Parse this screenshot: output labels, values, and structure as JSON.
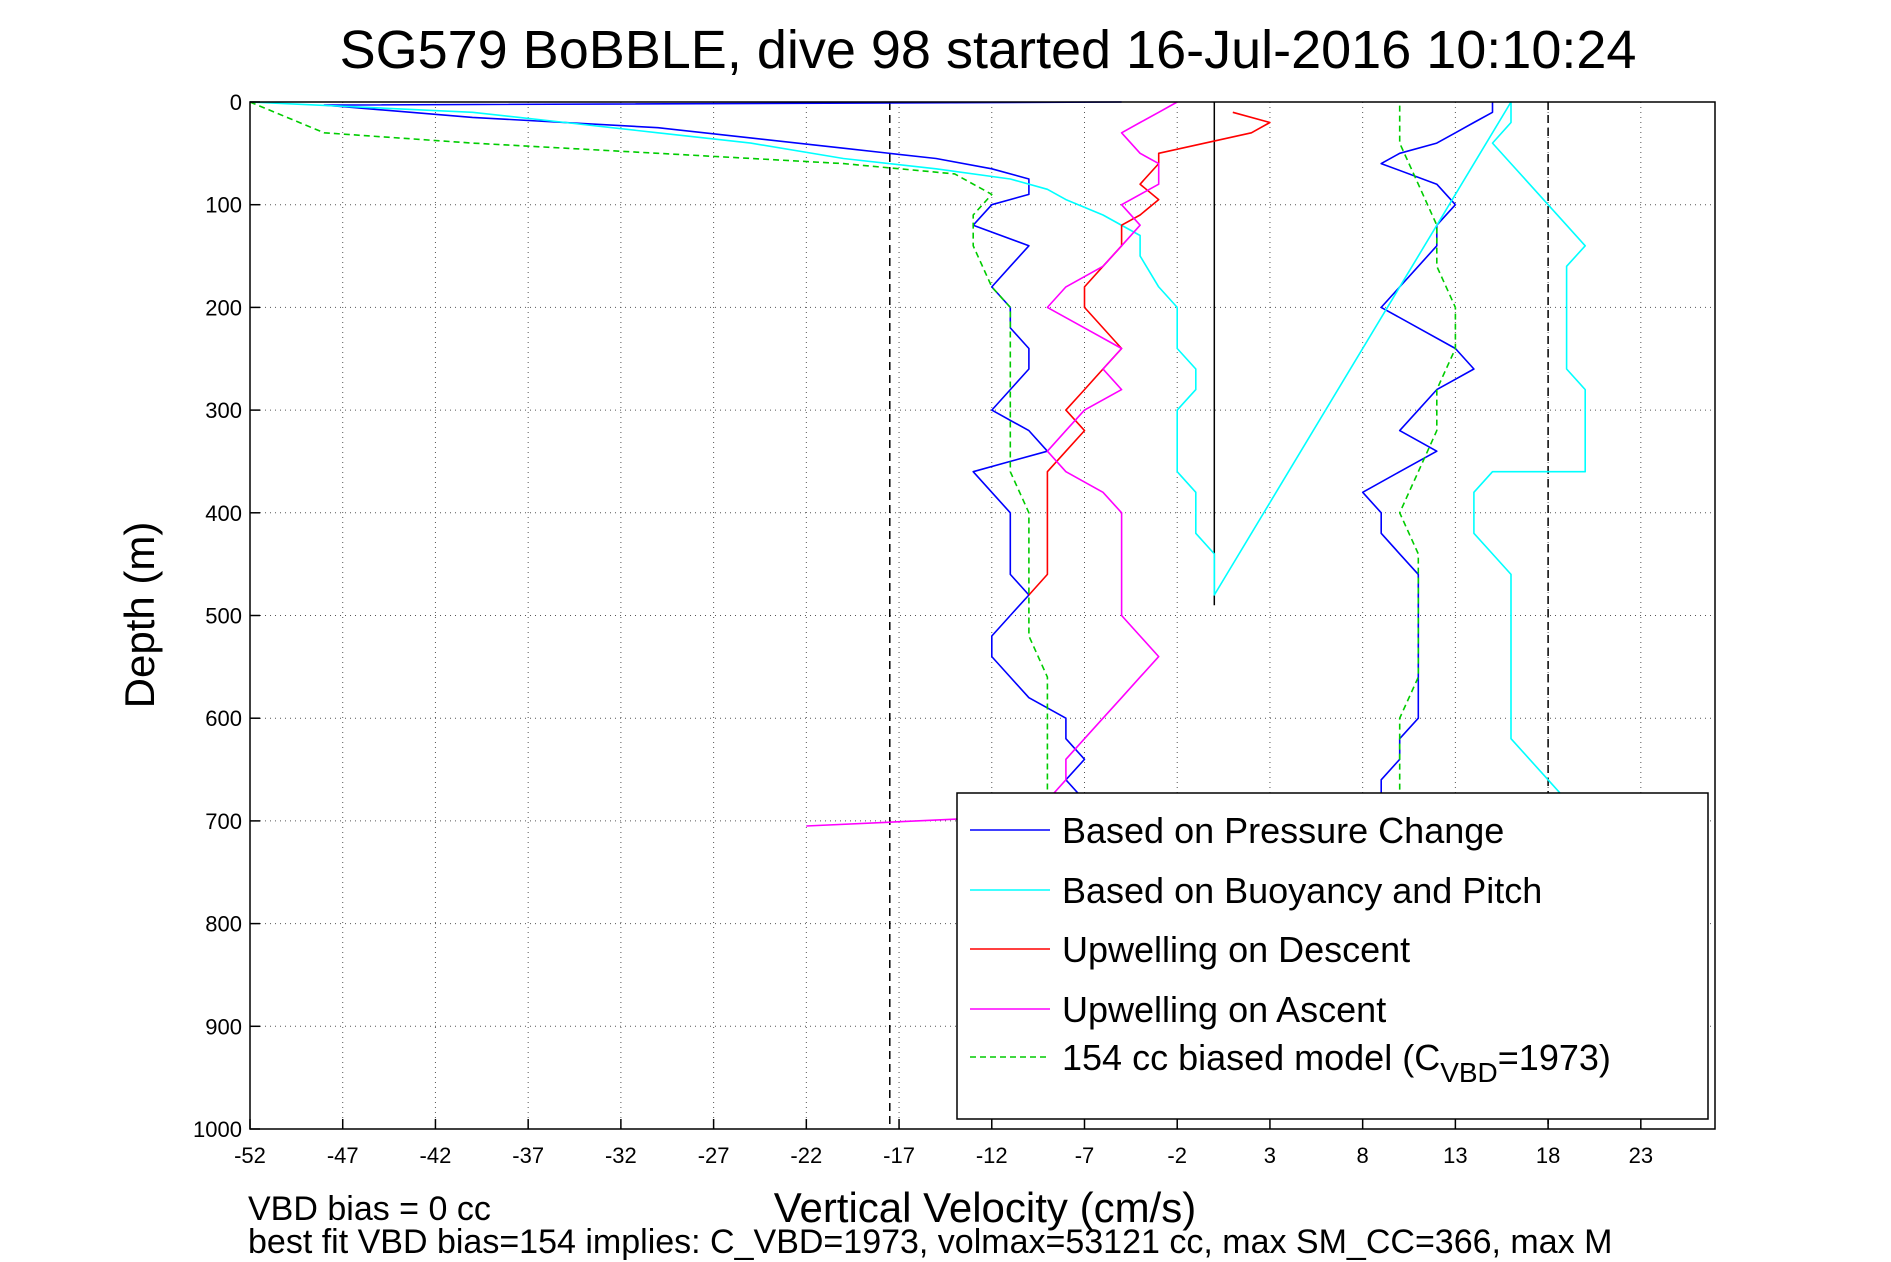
{
  "chart_data": {
    "type": "line",
    "title": "SG579 BoBBLE, dive 98 started 16-Jul-2016 10:10:24",
    "xlabel": "Vertical Velocity (cm/s)",
    "ylabel": "Depth (m)",
    "xlim": [
      -52,
      27
    ],
    "ylim": [
      0,
      1000
    ],
    "y_reversed": true,
    "grid": true,
    "legend_position": "lower-right",
    "xticks": [
      -52,
      -47,
      -42,
      -37,
      -32,
      -27,
      -22,
      -17,
      -12,
      -7,
      -2,
      3,
      8,
      13,
      18,
      23
    ],
    "yticks": [
      0,
      100,
      200,
      300,
      400,
      500,
      600,
      700,
      800,
      900,
      1000
    ],
    "reference_lines": {
      "dashed": [
        -17.5,
        18
      ],
      "solid": [
        0
      ]
    },
    "series": [
      {
        "name": "Based on Pressure Change",
        "color": "#0000ff",
        "points": [
          [
            -5,
            0
          ],
          [
            -48,
            3
          ],
          [
            -40,
            15
          ],
          [
            -30,
            25
          ],
          [
            -25,
            35
          ],
          [
            -20,
            45
          ],
          [
            -15,
            55
          ],
          [
            -12,
            65
          ],
          [
            -10,
            75
          ],
          [
            -10,
            90
          ],
          [
            -12,
            100
          ],
          [
            -13,
            120
          ],
          [
            -10,
            140
          ],
          [
            -11,
            160
          ],
          [
            -12,
            180
          ],
          [
            -11,
            200
          ],
          [
            -11,
            220
          ],
          [
            -10,
            240
          ],
          [
            -10,
            260
          ],
          [
            -11,
            280
          ],
          [
            -12,
            300
          ],
          [
            -10,
            320
          ],
          [
            -9,
            340
          ],
          [
            -11,
            350
          ],
          [
            -13,
            360
          ],
          [
            -12,
            380
          ],
          [
            -11,
            400
          ],
          [
            -11,
            420
          ],
          [
            -11,
            440
          ],
          [
            -11,
            460
          ],
          [
            -10,
            480
          ],
          [
            -11,
            500
          ],
          [
            -12,
            520
          ],
          [
            -12,
            540
          ],
          [
            -11,
            560
          ],
          [
            -10,
            580
          ],
          [
            -8,
            600
          ],
          [
            -8,
            620
          ],
          [
            -7,
            640
          ],
          [
            -8,
            660
          ],
          [
            -7,
            680
          ],
          [
            9,
            680
          ],
          [
            9,
            660
          ],
          [
            10,
            640
          ],
          [
            10,
            620
          ],
          [
            11,
            600
          ],
          [
            11,
            580
          ],
          [
            11,
            560
          ],
          [
            11,
            540
          ],
          [
            11,
            520
          ],
          [
            11,
            500
          ],
          [
            11,
            480
          ],
          [
            11,
            460
          ],
          [
            10,
            440
          ],
          [
            9,
            420
          ],
          [
            9,
            400
          ],
          [
            8,
            380
          ],
          [
            10,
            360
          ],
          [
            12,
            340
          ],
          [
            10,
            320
          ],
          [
            11,
            300
          ],
          [
            12,
            280
          ],
          [
            14,
            260
          ],
          [
            13,
            240
          ],
          [
            11,
            220
          ],
          [
            9,
            200
          ],
          [
            10,
            180
          ],
          [
            11,
            160
          ],
          [
            12,
            140
          ],
          [
            12,
            120
          ],
          [
            13,
            100
          ],
          [
            12,
            80
          ],
          [
            9,
            60
          ],
          [
            10,
            50
          ],
          [
            12,
            40
          ],
          [
            13,
            30
          ],
          [
            14,
            20
          ],
          [
            15,
            10
          ],
          [
            15,
            0
          ]
        ]
      },
      {
        "name": "Based on Buoyancy and Pitch",
        "color": "#00ffff",
        "points": [
          [
            -52,
            0
          ],
          [
            -40,
            10
          ],
          [
            -35,
            20
          ],
          [
            -30,
            30
          ],
          [
            -25,
            40
          ],
          [
            -20,
            55
          ],
          [
            -15,
            65
          ],
          [
            -11,
            75
          ],
          [
            -9,
            85
          ],
          [
            -8,
            95
          ],
          [
            -6,
            110
          ],
          [
            -4,
            130
          ],
          [
            -4,
            150
          ],
          [
            -3,
            180
          ],
          [
            -2,
            200
          ],
          [
            -2,
            220
          ],
          [
            -2,
            240
          ],
          [
            -1,
            260
          ],
          [
            -1,
            280
          ],
          [
            -2,
            300
          ],
          [
            -2,
            330
          ],
          [
            -2,
            360
          ],
          [
            -1,
            380
          ],
          [
            -1,
            400
          ],
          [
            -1,
            420
          ],
          [
            0,
            440
          ],
          [
            0,
            460
          ],
          [
            0,
            480
          ],
          [
            16,
            0
          ],
          [
            16,
            20
          ],
          [
            15,
            40
          ],
          [
            16,
            60
          ],
          [
            17,
            80
          ],
          [
            18,
            100
          ],
          [
            19,
            120
          ],
          [
            20,
            140
          ],
          [
            19,
            160
          ],
          [
            19,
            180
          ],
          [
            19,
            200
          ],
          [
            19,
            220
          ],
          [
            19,
            240
          ],
          [
            19,
            260
          ],
          [
            20,
            280
          ],
          [
            20,
            300
          ],
          [
            20,
            320
          ],
          [
            20,
            340
          ],
          [
            20,
            360
          ],
          [
            15,
            360
          ],
          [
            14,
            380
          ],
          [
            14,
            400
          ],
          [
            14,
            420
          ],
          [
            15,
            440
          ],
          [
            16,
            460
          ],
          [
            16,
            480
          ],
          [
            16,
            500
          ],
          [
            16,
            520
          ],
          [
            16,
            540
          ],
          [
            16,
            560
          ],
          [
            16,
            580
          ],
          [
            16,
            600
          ],
          [
            16,
            620
          ],
          [
            17,
            640
          ],
          [
            18,
            660
          ],
          [
            19,
            680
          ],
          [
            20,
            690
          ]
        ]
      },
      {
        "name": "Upwelling on Descent",
        "color": "#ff0000",
        "points": [
          [
            1,
            10
          ],
          [
            3,
            20
          ],
          [
            2,
            30
          ],
          [
            -3,
            50
          ],
          [
            -3,
            60
          ],
          [
            -4,
            80
          ],
          [
            -3,
            95
          ],
          [
            -4,
            110
          ],
          [
            -5,
            120
          ],
          [
            -5,
            140
          ],
          [
            -6,
            160
          ],
          [
            -7,
            180
          ],
          [
            -7,
            200
          ],
          [
            -6,
            220
          ],
          [
            -5,
            240
          ],
          [
            -6,
            260
          ],
          [
            -7,
            280
          ],
          [
            -8,
            300
          ],
          [
            -7,
            320
          ],
          [
            -8,
            340
          ],
          [
            -9,
            360
          ],
          [
            -9,
            380
          ],
          [
            -9,
            400
          ],
          [
            -9,
            420
          ],
          [
            -9,
            440
          ],
          [
            -9,
            460
          ],
          [
            -10,
            480
          ]
        ]
      },
      {
        "name": "Upwelling on Ascent",
        "color": "#ff00ff",
        "points": [
          [
            -2,
            0
          ],
          [
            -3,
            10
          ],
          [
            -4,
            20
          ],
          [
            -5,
            30
          ],
          [
            -4,
            50
          ],
          [
            -3,
            60
          ],
          [
            -3,
            80
          ],
          [
            -5,
            100
          ],
          [
            -4,
            120
          ],
          [
            -5,
            140
          ],
          [
            -6,
            160
          ],
          [
            -8,
            180
          ],
          [
            -9,
            200
          ],
          [
            -7,
            220
          ],
          [
            -5,
            240
          ],
          [
            -6,
            260
          ],
          [
            -5,
            280
          ],
          [
            -7,
            300
          ],
          [
            -8,
            320
          ],
          [
            -9,
            340
          ],
          [
            -8,
            360
          ],
          [
            -6,
            380
          ],
          [
            -5,
            400
          ],
          [
            -5,
            420
          ],
          [
            -5,
            440
          ],
          [
            -5,
            460
          ],
          [
            -5,
            480
          ],
          [
            -5,
            500
          ],
          [
            -4,
            520
          ],
          [
            -3,
            540
          ],
          [
            -4,
            560
          ],
          [
            -5,
            580
          ],
          [
            -6,
            600
          ],
          [
            -7,
            620
          ],
          [
            -8,
            640
          ],
          [
            -8,
            660
          ],
          [
            -9,
            680
          ],
          [
            -10,
            695
          ],
          [
            -22,
            705
          ]
        ]
      },
      {
        "name": "154 cc biased model (C_VBD=1973)",
        "color": "#00cc00",
        "dashed": true,
        "points": [
          [
            -52,
            0
          ],
          [
            -48,
            30
          ],
          [
            -40,
            40
          ],
          [
            -30,
            50
          ],
          [
            -20,
            60
          ],
          [
            -14,
            70
          ],
          [
            -12,
            90
          ],
          [
            -13,
            110
          ],
          [
            -13,
            140
          ],
          [
            -12,
            180
          ],
          [
            -11,
            200
          ],
          [
            -11,
            240
          ],
          [
            -11,
            280
          ],
          [
            -11,
            320
          ],
          [
            -11,
            360
          ],
          [
            -10,
            400
          ],
          [
            -10,
            440
          ],
          [
            -10,
            480
          ],
          [
            -10,
            520
          ],
          [
            -9,
            560
          ],
          [
            -9,
            600
          ],
          [
            -9,
            640
          ],
          [
            -9,
            680
          ],
          [
            10,
            680
          ],
          [
            10,
            640
          ],
          [
            10,
            600
          ],
          [
            11,
            560
          ],
          [
            11,
            520
          ],
          [
            11,
            480
          ],
          [
            11,
            440
          ],
          [
            10,
            400
          ],
          [
            11,
            360
          ],
          [
            12,
            320
          ],
          [
            12,
            280
          ],
          [
            13,
            240
          ],
          [
            13,
            200
          ],
          [
            12,
            160
          ],
          [
            12,
            120
          ],
          [
            11,
            80
          ],
          [
            10,
            40
          ],
          [
            10,
            0
          ]
        ]
      }
    ]
  },
  "legend": {
    "items": [
      {
        "label": "Based on Pressure Change",
        "color": "#0000ff",
        "dashed": false
      },
      {
        "label": "Based on Buoyancy and Pitch",
        "color": "#00ffff",
        "dashed": false
      },
      {
        "label": "Upwelling on Descent",
        "color": "#ff0000",
        "dashed": false
      },
      {
        "label": "Upwelling on Ascent",
        "color": "#ff00ff",
        "dashed": false
      },
      {
        "label_main": "154 cc biased model (C",
        "label_sub": "VBD",
        "label_end": "=1973)",
        "color": "#00cc00",
        "dashed": true
      }
    ]
  },
  "footer": {
    "line1": "VBD bias = 0 cc",
    "line2": "best fit VBD bias=154 implies: C_VBD=1973, volmax=53121 cc, max SM_CC=366, max M"
  }
}
